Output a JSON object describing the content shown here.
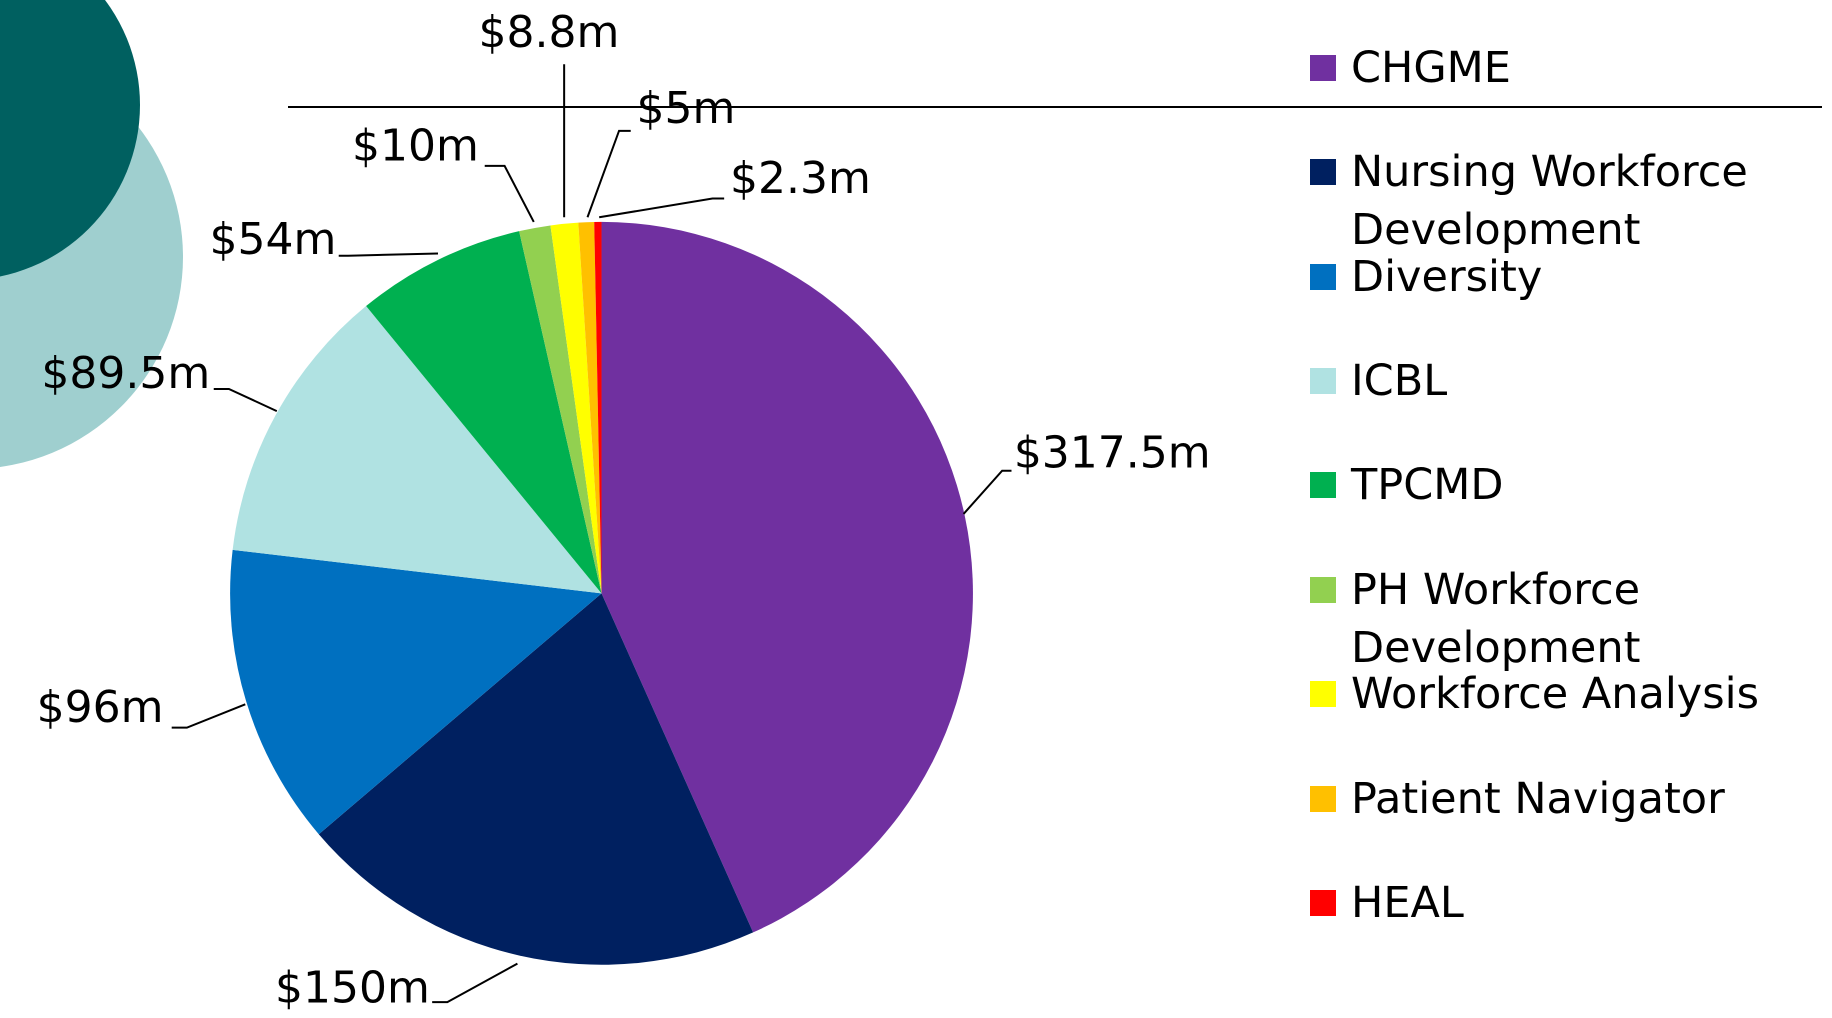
{
  "chart_data": {
    "type": "pie",
    "categories": [
      "CHGME",
      "Nursing Workforce Development",
      "Diversity",
      "ICBL",
      "TPCMD",
      "PH Workforce Development",
      "Workforce Analysis",
      "Patient Navigator",
      "HEAL"
    ],
    "values": [
      317.5,
      150,
      96,
      89.5,
      54,
      10,
      8.8,
      5,
      2.3
    ],
    "value_labels": [
      "$317.5m",
      "$150m",
      "$96m",
      "$89.5m",
      "$54m",
      "$10m",
      "$8.8m",
      "$5m",
      "$2.3m"
    ],
    "colors": [
      "#7030a0",
      "#002060",
      "#0070c0",
      "#b0e2e2",
      "#00b050",
      "#92d050",
      "#ffff00",
      "#ffc000",
      "#ff0000"
    ],
    "legend": "right"
  }
}
